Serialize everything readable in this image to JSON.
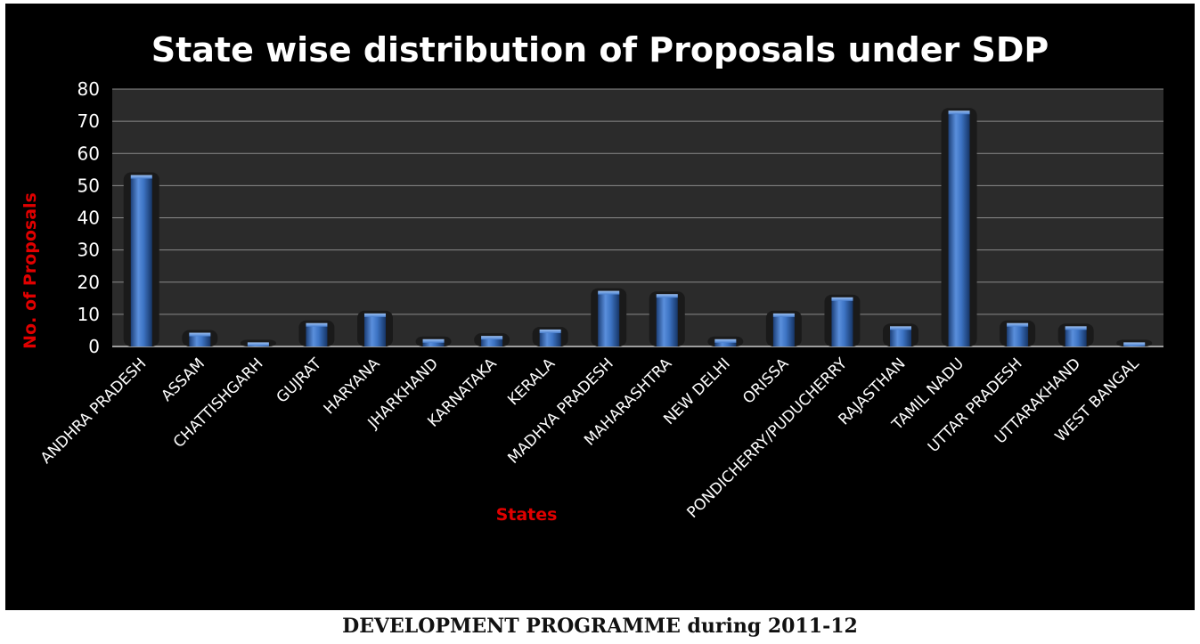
{
  "chart_data": {
    "type": "bar",
    "title": "State wise distribution of Proposals under SDP",
    "xlabel": "States",
    "ylabel": "No. of Proposals",
    "ylim": [
      0,
      80
    ],
    "yticks": [
      0,
      10,
      20,
      30,
      40,
      50,
      60,
      70,
      80
    ],
    "grid": true,
    "legend": "none",
    "categories": [
      "ANDHRA PRADESH",
      "ASSAM",
      "CHATTISHGARH",
      "GUJRAT",
      "HARYANA",
      "JHARKHAND",
      "KARNATAKA",
      "KERALA",
      "MADHYA PRADESH",
      "MAHARASHTRA",
      "NEW DELHI",
      "ORISSA",
      "PONDICHERRY/PUDUCHERRY",
      "RAJASTHAN",
      "TAMIL NADU",
      "UTTAR PRADESH",
      "UTTARAKHAND",
      "WEST BANGAL"
    ],
    "values": [
      53,
      4,
      1,
      7,
      10,
      2,
      3,
      5,
      17,
      16,
      2,
      10,
      15,
      6,
      73,
      7,
      6,
      1
    ],
    "colors": {
      "background": "#000000",
      "bar": "#3d74c4",
      "grid": "#8a8a8a",
      "text": "#ffffff",
      "axis_title": "#e00000"
    }
  },
  "caption": "DEVELOPMENT PROGRAMME during 2011-12"
}
